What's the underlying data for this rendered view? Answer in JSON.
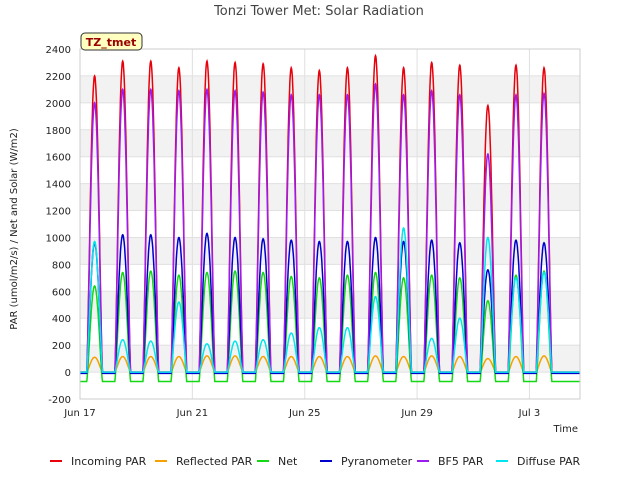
{
  "chart_data": {
    "type": "line",
    "title": "Tonzi Tower Met: Solar Radiation",
    "xlabel": "Time",
    "ylabel": "PAR (umol/m2/s) / Net and Solar (W/m2)",
    "badge": "TZ_tmet",
    "ylim": [
      -200,
      2400
    ],
    "yticks": [
      -200,
      0,
      200,
      400,
      600,
      800,
      1000,
      1200,
      1400,
      1600,
      1800,
      2000,
      2200,
      2400
    ],
    "xlim": [
      0,
      17.8
    ],
    "xticks": [
      {
        "day": 0,
        "label": "Jun 17"
      },
      {
        "day": 4,
        "label": "Jun 21"
      },
      {
        "day": 8,
        "label": "Jun 25"
      },
      {
        "day": 12,
        "label": "Jun 29"
      },
      {
        "day": 16,
        "label": "Jul 3"
      }
    ],
    "grid": true,
    "legend_position": "bottom",
    "days": [
      "Jun 17",
      "Jun 18",
      "Jun 19",
      "Jun 20",
      "Jun 21",
      "Jun 22",
      "Jun 23",
      "Jun 24",
      "Jun 25",
      "Jun 26",
      "Jun 27",
      "Jun 28",
      "Jun 29",
      "Jun 30",
      "Jul 1",
      "Jul 2",
      "Jul 3",
      "Jul 4"
    ],
    "series": [
      {
        "name": "Incoming PAR",
        "color": "#e8000b",
        "night": 0,
        "daily_peak": [
          2200,
          2310,
          2310,
          2260,
          2310,
          2300,
          2290,
          2260,
          2240,
          2260,
          2350,
          2260,
          2300,
          2280,
          1980,
          2280,
          2260,
          0
        ]
      },
      {
        "name": "Reflected PAR",
        "color": "#f5a100",
        "night": 0,
        "daily_peak": [
          110,
          115,
          115,
          115,
          120,
          120,
          115,
          115,
          115,
          115,
          120,
          115,
          120,
          115,
          100,
          115,
          120,
          0
        ]
      },
      {
        "name": "Net",
        "color": "#13d813",
        "night": -70,
        "daily_peak": [
          640,
          740,
          750,
          720,
          740,
          750,
          740,
          710,
          700,
          720,
          740,
          700,
          720,
          700,
          530,
          720,
          750,
          0
        ]
      },
      {
        "name": "Pyranometer",
        "color": "#0000cc",
        "night": -10,
        "daily_peak": [
          960,
          1020,
          1020,
          1000,
          1030,
          1000,
          990,
          980,
          970,
          970,
          1000,
          970,
          980,
          960,
          760,
          980,
          960,
          0
        ]
      },
      {
        "name": "BF5 PAR",
        "color": "#9b1cf0",
        "night": 0,
        "daily_peak": [
          2000,
          2100,
          2100,
          2090,
          2100,
          2090,
          2080,
          2060,
          2060,
          2060,
          2140,
          2060,
          2090,
          2060,
          1620,
          2060,
          2070,
          0
        ]
      },
      {
        "name": "Diffuse PAR",
        "color": "#00e5ee",
        "night": 0,
        "daily_peak": [
          970,
          240,
          230,
          520,
          210,
          230,
          240,
          290,
          330,
          330,
          560,
          1070,
          250,
          400,
          1000,
          700,
          740,
          0
        ]
      }
    ]
  }
}
